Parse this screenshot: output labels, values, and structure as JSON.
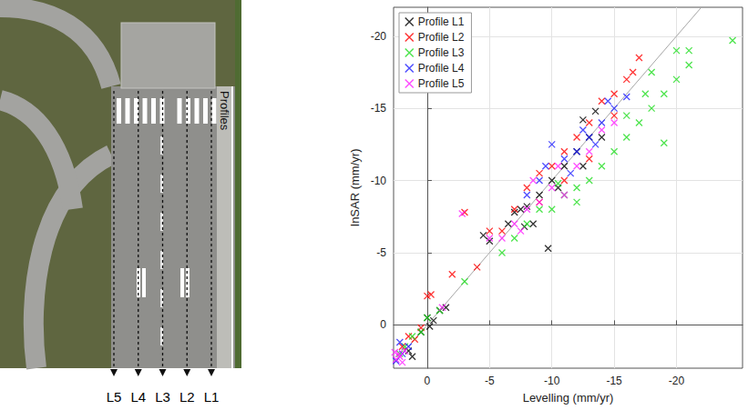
{
  "chart_data": {
    "type": "scatter",
    "xlabel": "Levelling (mm/yr)",
    "ylabel": "InSAR (mm/yr)",
    "xlim": [
      2.7,
      -25.3
    ],
    "ylim": [
      3,
      -22
    ],
    "xticks": [
      0,
      -5,
      -10,
      -15,
      -20
    ],
    "yticks": [
      0,
      -5,
      -10,
      -15,
      -20
    ],
    "grid": true,
    "legend": "upper left",
    "reference_line": {
      "x": [
        2.7,
        -25.3
      ],
      "y": [
        2.7,
        -25.3
      ],
      "color": "#a6a6a6"
    },
    "series": [
      {
        "name": "Profile L1",
        "color": "#000000",
        "marker": "x",
        "x": [
          0.5,
          -0.5,
          0,
          -1,
          -1.5,
          -0.2,
          1.5,
          1.2,
          -4.5,
          -5,
          -6.5,
          -7,
          -7.5,
          -8,
          -7.8,
          -8.5,
          -9,
          -9.7,
          -10,
          -10.5,
          -11,
          -12,
          -12.5,
          -13,
          -13.5,
          -12.5,
          -14
        ],
        "values": [
          0.5,
          -0.3,
          -0.5,
          -1,
          -1.2,
          0.1,
          1.8,
          2.2,
          -6.2,
          -5.8,
          -7,
          -7.8,
          -8,
          -8.2,
          -6.8,
          -7,
          -9,
          -5.3,
          -10,
          -9.5,
          -11,
          -12,
          -11,
          -13,
          -14.8,
          -14.2,
          -13
        ]
      },
      {
        "name": "Profile L2",
        "color": "#ff0000",
        "marker": "x",
        "x": [
          2,
          1.5,
          1,
          0.5,
          0,
          -0.3,
          -2,
          -4,
          -5,
          -6,
          -7,
          -8,
          -9,
          -10,
          -11,
          -12,
          -13,
          -14,
          -15,
          -16,
          -17,
          -16.5,
          -15,
          -13,
          -11,
          -9,
          -3
        ],
        "values": [
          1.5,
          0.8,
          1,
          0.2,
          -2,
          -2.1,
          -3.5,
          -4,
          -6.5,
          -6.5,
          -8,
          -9.5,
          -10.5,
          -11,
          -12,
          -13,
          -14,
          -15.5,
          -16,
          -17,
          -18.5,
          -17.5,
          -14.5,
          -11.5,
          -10,
          -8.5,
          -7.8
        ]
      },
      {
        "name": "Profile L3",
        "color": "#22dd22",
        "marker": "x",
        "x": [
          2.2,
          1.8,
          1.2,
          0.5,
          0,
          -1,
          -3,
          -6,
          -7,
          -8,
          -9,
          -10,
          -11,
          -12,
          -13,
          -14,
          -15,
          -16,
          -17,
          -18,
          -19,
          -20,
          -21,
          -20,
          -21,
          -24.5,
          -19,
          -18,
          -17.5,
          -16,
          -12,
          -10.5
        ],
        "values": [
          2,
          1.5,
          0.8,
          0.5,
          -0.5,
          -1,
          -3,
          -5,
          -6,
          -7,
          -8,
          -8,
          -9,
          -9.5,
          -10,
          -11,
          -12,
          -13,
          -14,
          -15,
          -16,
          -17,
          -18,
          -19,
          -19,
          -19.7,
          -12.6,
          -17.5,
          -16,
          -14.5,
          -8.5,
          -9.8
        ]
      },
      {
        "name": "Profile L4",
        "color": "#2222ff",
        "marker": "x",
        "x": [
          2.5,
          2,
          1.5,
          2.2,
          -8,
          -9,
          -10,
          -11,
          -12,
          -12.5,
          -13,
          -14,
          -14.5,
          -15,
          -16,
          -11.5,
          -9.5,
          -13.5
        ],
        "values": [
          2.5,
          2,
          1.5,
          1.2,
          -9,
          -10,
          -12.5,
          -11.5,
          -12,
          -13.5,
          -13,
          -14,
          -15.5,
          -15,
          -15.8,
          -10.5,
          -11,
          -12.5
        ]
      },
      {
        "name": "Profile L5",
        "color": "#ff22ff",
        "marker": "x",
        "x": [
          2.5,
          2.3,
          2,
          1.8,
          2.6,
          2.2,
          -1.2,
          -2.8,
          -5,
          -6,
          -7,
          -8,
          -9,
          -10,
          -11,
          -12,
          -13,
          -14,
          -15,
          -10.5,
          -8.5,
          -7.5
        ],
        "values": [
          2.4,
          2,
          2.6,
          1.8,
          1.9,
          2.2,
          -1.2,
          -7.7,
          -6,
          -6,
          -7,
          -8,
          -8.5,
          -9.5,
          -9,
          -11,
          -12,
          -13.5,
          -14,
          -11,
          -10,
          -6.5
        ]
      }
    ]
  },
  "image": {
    "profiles_label": "Profiles",
    "profile_lines": [
      "L5",
      "L4",
      "L3",
      "L2",
      "L1"
    ]
  }
}
